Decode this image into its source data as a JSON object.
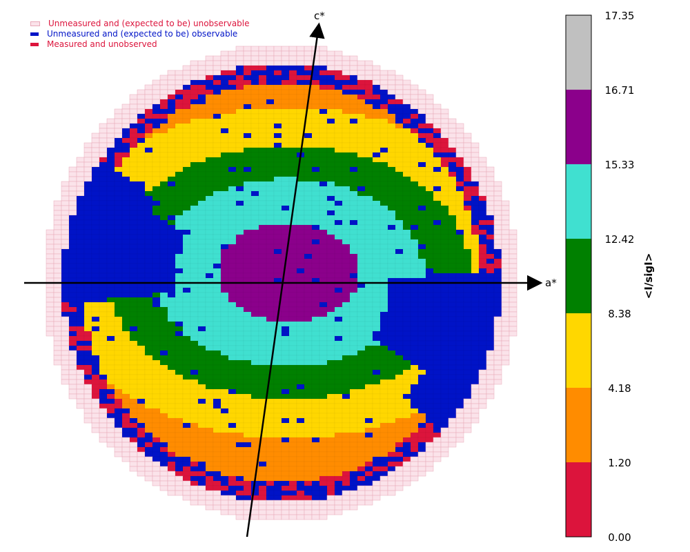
{
  "chart_data": {
    "type": "heatmap",
    "title": "",
    "axes": {
      "x_label": "a*",
      "y_label": "c*"
    },
    "legend": {
      "placement": "top-left",
      "entries": [
        {
          "label": "Unmeasured and (expected to be) unobservable",
          "color": "#fbe3ea",
          "text_color": "#dc143c"
        },
        {
          "label": "Unmeasured and (expected to be) observable",
          "color": "#0013c7",
          "text_color": "#0013c7"
        },
        {
          "label": "Measured and unobserved",
          "color": "#dc143c",
          "text_color": "#dc143c"
        }
      ]
    },
    "colorbar": {
      "label": "<I/sigI>",
      "ticks": [
        "0.00",
        "1.20",
        "4.18",
        "8.38",
        "12.42",
        "15.33",
        "16.71",
        "17.35"
      ],
      "bins": [
        {
          "lo": "0.00",
          "hi": "1.20",
          "color": "#dc143c"
        },
        {
          "lo": "1.20",
          "hi": "4.18",
          "color": "#ff8c00"
        },
        {
          "lo": "4.18",
          "hi": "8.38",
          "color": "#ffd700"
        },
        {
          "lo": "8.38",
          "hi": "12.42",
          "color": "#008000"
        },
        {
          "lo": "12.42",
          "hi": "15.33",
          "color": "#40e0d0"
        },
        {
          "lo": "15.33",
          "hi": "16.71",
          "color": "#8b008b"
        },
        {
          "lo": "16.71",
          "hi": "17.35",
          "color": "#c0c0c0"
        }
      ]
    },
    "grid": false,
    "colors": {
      "unobservable": "#fbe3ea",
      "observable_unmeasured": "#0013c7",
      "measured_unobserved": "#dc143c",
      "cell_edge": "#e8a9b8"
    }
  }
}
